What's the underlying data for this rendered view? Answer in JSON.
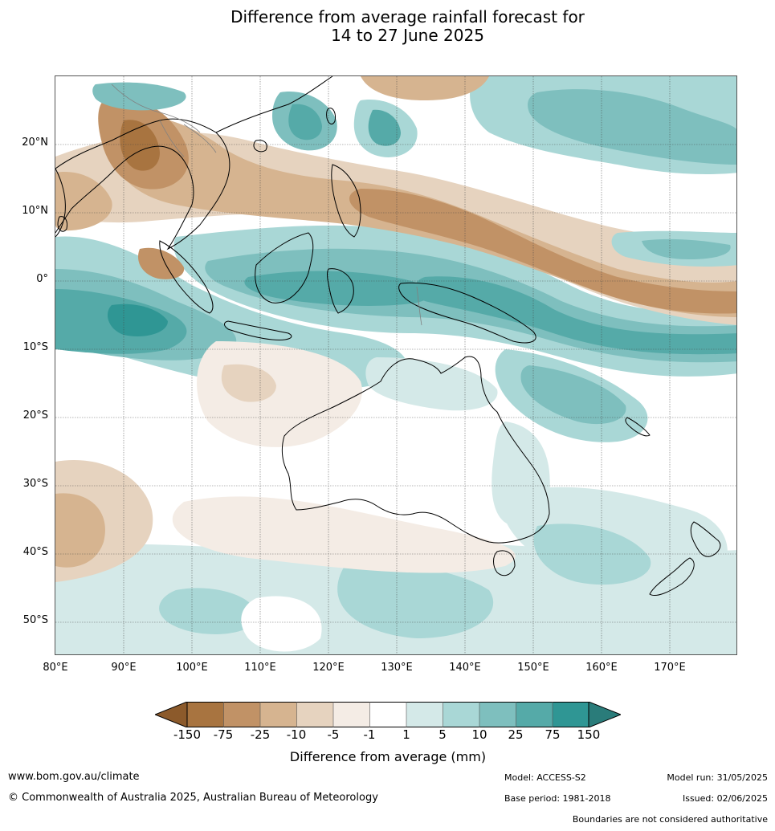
{
  "title": {
    "line1": "Difference from average rainfall forecast for",
    "line2": "14 to 27 June 2025"
  },
  "map": {
    "lat_labels": [
      "20°N",
      "10°N",
      "0°",
      "10°S",
      "20°S",
      "30°S",
      "40°S",
      "50°S"
    ],
    "lon_labels": [
      "80°E",
      "90°E",
      "100°E",
      "110°E",
      "120°E",
      "130°E",
      "140°E",
      "150°E",
      "160°E",
      "170°E"
    ]
  },
  "colorbar": {
    "ticks": [
      "-150",
      "-75",
      "-25",
      "-10",
      "-5",
      "-1",
      "1",
      "5",
      "10",
      "25",
      "75",
      "150"
    ],
    "colors": [
      "#8c5a2b",
      "#a87440",
      "#c19266",
      "#d6b490",
      "#e6d3bf",
      "#f4ece5",
      "#ffffff",
      "#d4e9e8",
      "#a9d7d6",
      "#7ebfbe",
      "#55aaa8",
      "#2f9694",
      "#2a7c7a"
    ],
    "label": "Difference from average (mm)"
  },
  "footer": {
    "website": "www.bom.gov.au/climate",
    "copyright": "© Commonwealth of Australia 2025, Australian Bureau of Meteorology",
    "model": "Model: ACCESS-S2",
    "base_period": "Base period: 1981-2018",
    "model_run": "Model run: 31/05/2025",
    "issued": "Issued: 02/06/2025",
    "disclaimer": "Boundaries are not considered authoritative"
  }
}
